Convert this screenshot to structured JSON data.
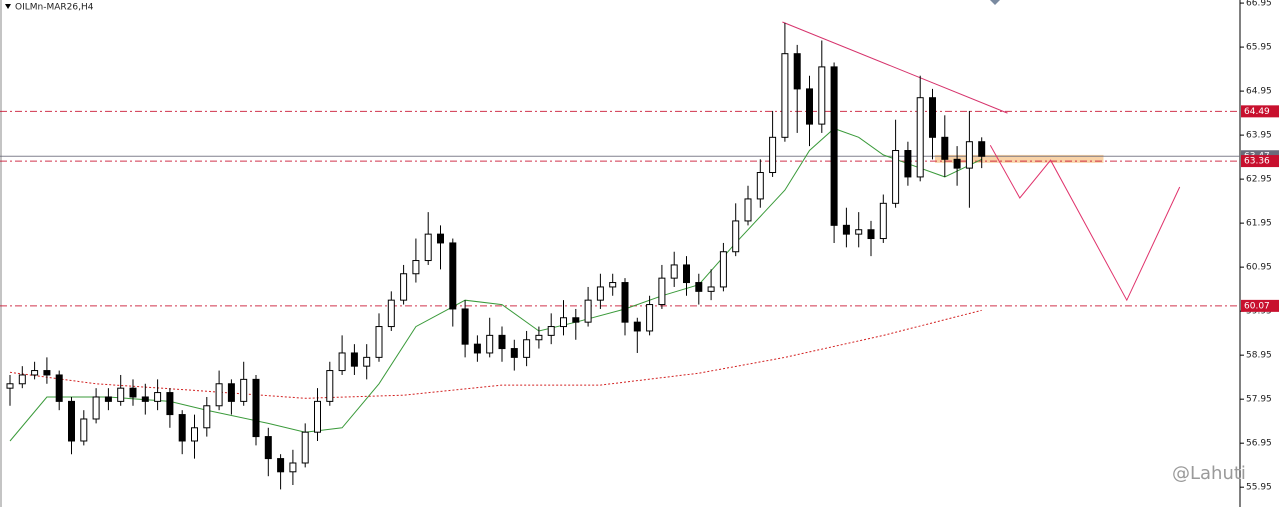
{
  "chart_data": {
    "type": "candlestick",
    "title": "OILMn-MAR26,H4",
    "watermark": "@Lahuti",
    "ylim": [
      55.5,
      67.02
    ],
    "yticks": [
      66.95,
      65.95,
      64.95,
      63.95,
      62.95,
      61.95,
      60.95,
      59.95,
      58.95,
      57.95,
      56.95,
      55.95
    ],
    "up_color": "#ffffff",
    "down_color": "#000000",
    "open": [
      58.2,
      58.3,
      58.5,
      58.6,
      58.5,
      57.9,
      57.0,
      57.5,
      58.0,
      57.9,
      58.2,
      58.0,
      57.9,
      58.1,
      57.6,
      57.0,
      57.3,
      57.8,
      58.3,
      57.9,
      58.4,
      57.1,
      56.6,
      56.3,
      56.5,
      57.2,
      57.9,
      58.6,
      59.0,
      58.7,
      58.9,
      59.6,
      60.2,
      60.8,
      61.1,
      61.7,
      61.5,
      60.0,
      59.2,
      59.0,
      59.4,
      59.1,
      58.9,
      59.3,
      59.4,
      59.6,
      59.8,
      59.7,
      60.2,
      60.5,
      60.6,
      59.7,
      59.5,
      60.1,
      60.7,
      61.0,
      60.6,
      60.4,
      60.5,
      61.3,
      62.0,
      62.5,
      63.1,
      63.9,
      65.8,
      65.0,
      64.2,
      65.5,
      61.9,
      61.7,
      61.8,
      61.6,
      62.4,
      63.6,
      63.0,
      64.8,
      63.9,
      63.4,
      63.2,
      63.8
    ],
    "high": [
      58.5,
      58.7,
      58.8,
      58.9,
      58.6,
      58.0,
      57.7,
      58.2,
      58.2,
      58.5,
      58.4,
      58.3,
      58.4,
      58.2,
      57.7,
      57.6,
      58.0,
      58.6,
      58.4,
      58.8,
      58.5,
      57.3,
      56.7,
      56.8,
      57.4,
      58.2,
      58.8,
      59.4,
      59.2,
      59.2,
      59.9,
      60.4,
      61.0,
      61.6,
      62.2,
      61.9,
      61.6,
      60.2,
      59.4,
      59.8,
      59.6,
      59.3,
      59.5,
      59.6,
      59.9,
      60.2,
      60.0,
      60.5,
      60.8,
      60.8,
      60.7,
      59.8,
      60.3,
      61.0,
      61.3,
      61.2,
      60.8,
      60.9,
      61.5,
      62.4,
      62.8,
      63.4,
      64.5,
      66.5,
      66.0,
      65.3,
      66.1,
      65.6,
      62.3,
      62.2,
      62.0,
      62.6,
      64.3,
      63.8,
      65.3,
      65.0,
      64.4,
      63.7,
      64.5,
      63.9
    ],
    "low": [
      57.8,
      58.2,
      58.4,
      58.3,
      57.7,
      56.7,
      56.9,
      57.4,
      57.7,
      57.8,
      57.8,
      57.6,
      57.7,
      57.3,
      56.7,
      56.6,
      57.1,
      57.7,
      57.6,
      57.8,
      56.9,
      56.2,
      55.9,
      56.0,
      56.4,
      57.0,
      57.8,
      58.5,
      58.5,
      58.4,
      58.8,
      59.5,
      60.1,
      60.6,
      61.0,
      60.9,
      59.6,
      58.9,
      58.8,
      58.9,
      58.8,
      58.6,
      58.7,
      59.1,
      59.2,
      59.4,
      59.3,
      59.6,
      60.0,
      60.3,
      59.4,
      59.0,
      59.4,
      60.0,
      60.5,
      60.3,
      60.1,
      60.2,
      60.4,
      61.2,
      61.9,
      62.3,
      63.0,
      63.8,
      64.0,
      63.7,
      64.0,
      61.5,
      61.4,
      61.4,
      61.2,
      61.5,
      62.3,
      62.8,
      62.9,
      63.4,
      63.0,
      62.8,
      62.3,
      63.2
    ],
    "close": [
      58.3,
      58.5,
      58.6,
      58.5,
      57.9,
      57.0,
      57.5,
      58.0,
      57.9,
      58.2,
      58.0,
      57.9,
      58.1,
      57.6,
      57.0,
      57.3,
      57.8,
      58.3,
      57.9,
      58.4,
      57.1,
      56.6,
      56.3,
      56.5,
      57.2,
      57.9,
      58.6,
      59.0,
      58.7,
      58.9,
      59.6,
      60.2,
      60.8,
      61.1,
      61.7,
      61.5,
      60.0,
      59.2,
      59.0,
      59.4,
      59.1,
      58.9,
      59.3,
      59.4,
      59.6,
      59.8,
      59.7,
      60.2,
      60.5,
      60.6,
      59.7,
      59.5,
      60.1,
      60.7,
      61.0,
      60.6,
      60.4,
      60.5,
      61.3,
      62.0,
      62.5,
      63.1,
      63.9,
      65.8,
      65.0,
      64.2,
      65.5,
      61.9,
      61.7,
      61.8,
      61.6,
      62.4,
      63.6,
      63.0,
      64.8,
      63.9,
      63.4,
      63.2,
      63.8,
      63.47
    ],
    "lines": [
      {
        "color": "#3a9a3a",
        "dash": "none",
        "x": [
          0,
          3,
          8,
          13,
          16,
          21,
          24,
          27,
          30,
          33,
          37,
          40,
          43,
          46,
          50,
          53,
          56,
          59,
          63,
          65,
          67,
          69,
          71,
          73,
          76,
          79
        ],
        "values": [
          57.0,
          58.0,
          58.0,
          57.9,
          57.7,
          57.4,
          57.2,
          57.3,
          58.3,
          59.6,
          60.2,
          60.1,
          59.5,
          59.7,
          60.0,
          60.3,
          60.55,
          61.5,
          62.7,
          63.6,
          64.1,
          63.9,
          63.5,
          63.3,
          63.0,
          63.4
        ]
      },
      {
        "color": "#d22020",
        "dash": "2 2",
        "x": [
          0,
          7,
          15,
          24,
          32,
          40,
          48,
          56,
          63,
          71,
          79
        ],
        "values": [
          58.56,
          58.3,
          58.15,
          57.97,
          58.04,
          58.27,
          58.27,
          58.54,
          58.9,
          59.4,
          59.97
        ]
      },
      {
        "color": "#d6336c",
        "dash": "none",
        "x": [
          62.8,
          81.1
        ],
        "values": [
          66.52,
          64.45
        ]
      },
      {
        "color": "#e0336c",
        "dash": "none",
        "x": [
          79.7,
          82.1,
          84.6,
          90.8,
          95.1
        ],
        "values": [
          63.72,
          62.52,
          63.38,
          60.2,
          62.77
        ]
      }
    ],
    "zone": {
      "x": [
        75.2,
        88.9
      ],
      "values": [
        63.32,
        63.5
      ],
      "color": "#f7c48a"
    },
    "levels": [
      {
        "value": 64.49,
        "color": "#c8102e",
        "style": "dashdot"
      },
      {
        "value": 63.47,
        "color": "#6b6b7a",
        "style": "solid"
      },
      {
        "value": 63.36,
        "color": "#c8102e",
        "style": "dashdot"
      },
      {
        "value": 60.07,
        "color": "#c8102e",
        "style": "dashdot"
      }
    ]
  }
}
